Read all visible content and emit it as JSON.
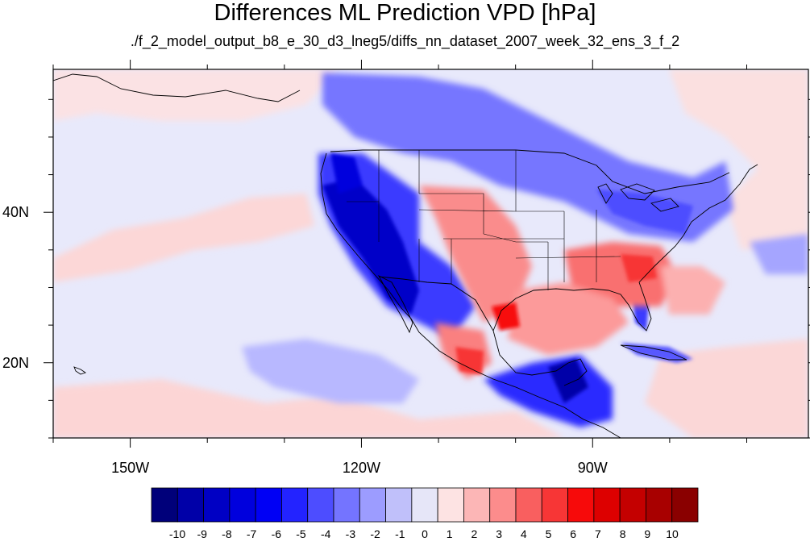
{
  "title": "Differences ML Prediction VPD [hPa]",
  "subtitle": "./f_2_model_output_b8_e_30_d3_lneg5/diffs_nn_dataset_2007_week_32_ens_3_f_2",
  "map": {
    "lon_range": [
      -160,
      -62
    ],
    "lat_range": [
      10,
      59
    ],
    "lon_ticks": [
      {
        "value": -150,
        "label": "150W"
      },
      {
        "value": -120,
        "label": "120W"
      },
      {
        "value": -90,
        "label": "90W"
      }
    ],
    "lat_ticks": [
      {
        "value": 40,
        "label": "40N"
      },
      {
        "value": 20,
        "label": "20N"
      }
    ],
    "background_color": "#e8e9fb",
    "coastline_color": "#000000"
  },
  "colorbar": {
    "labels": [
      "-10",
      "-9",
      "-8",
      "-7",
      "-6",
      "-5",
      "-4",
      "-3",
      "-2",
      "-1",
      "0",
      "1",
      "2",
      "3",
      "4",
      "5",
      "6",
      "7",
      "8",
      "9",
      "10"
    ],
    "colors": [
      "#00007a",
      "#0000a8",
      "#0000c4",
      "#0000dd",
      "#0000f5",
      "#2323ff",
      "#4d4dff",
      "#7474ff",
      "#9c9cff",
      "#c0c0fa",
      "#e6e6f8",
      "#fde3e3",
      "#fcb6b6",
      "#fc8c8c",
      "#f95f5f",
      "#f73636",
      "#f70a0a",
      "#dd0000",
      "#c40000",
      "#a80000",
      "#8a0000"
    ]
  }
}
